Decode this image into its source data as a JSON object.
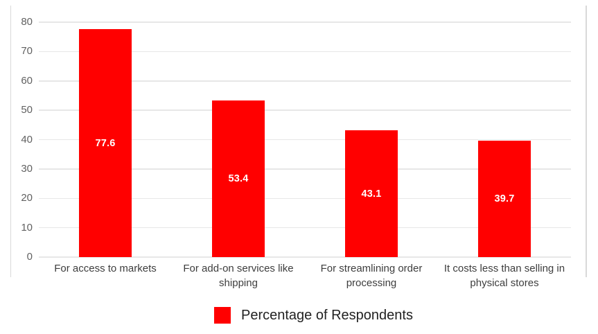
{
  "chart_data": {
    "type": "bar",
    "title": "",
    "xlabel": "",
    "ylabel": "",
    "categories": [
      "For access to markets",
      "For add-on services like shipping",
      "For streamlining order processing",
      "It costs less than selling in physical stores"
    ],
    "series": [
      {
        "name": "Percentage of Respondents",
        "values": [
          77.6,
          53.4,
          43.1,
          39.7
        ],
        "color": "#ff0000"
      }
    ],
    "data_labels": [
      "77.6",
      "53.4",
      "43.1",
      "39.7"
    ],
    "ylim": [
      0,
      80
    ],
    "yticks": [
      0,
      10,
      20,
      30,
      40,
      50,
      60,
      70,
      80
    ],
    "grid": true,
    "legend_position": "bottom"
  },
  "legend": {
    "label": "Percentage of Respondents",
    "swatch_color": "#ff0000"
  },
  "colors": {
    "bar": "#ff0000",
    "grid": "#e7e7e7",
    "frame": "#d9d9d9",
    "tick_label": "#616161",
    "category_label": "#3d3d3d",
    "legend_label": "#222222",
    "data_label": "#ffffff",
    "background": "#ffffff"
  }
}
